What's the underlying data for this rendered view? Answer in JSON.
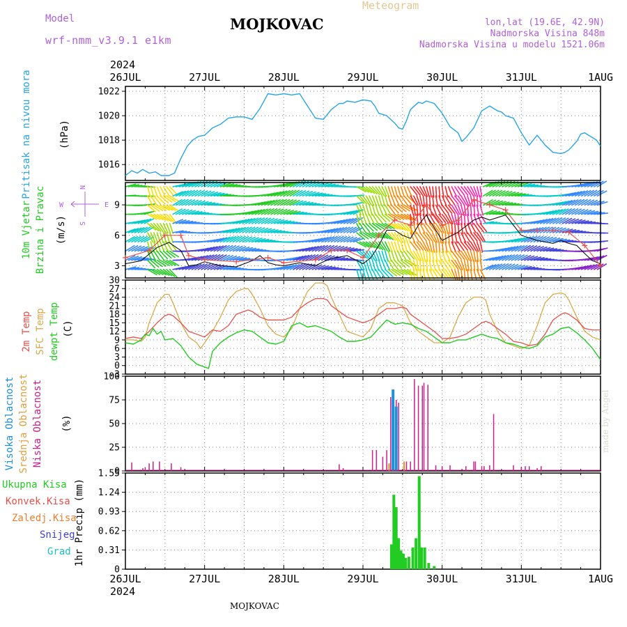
{
  "header": {
    "model_label": "Model",
    "model_name": "wrf-nmm_v3.9.1 e1km",
    "station": "MOJKOVAC",
    "meteogram": "Meteogram",
    "coords": "lon,lat (19.6E, 42.9N)",
    "altitude": "Nadmorska Visina 848m",
    "model_altitude": "Nadmorska Visina u modelu 1521.06m",
    "year": "2024",
    "footer_station": "MOJKOVAC",
    "credit": "made by Angel"
  },
  "colors": {
    "pressure": "#28a5e6",
    "temp2m": "#e8504a",
    "sfc_temp": "#d9a84a",
    "dewpt": "#22cc22",
    "high_cloud": "#1e90d8",
    "mid_cloud": "#e0a040",
    "low_cloud": "#c8208c",
    "total_precip": "#22cc22",
    "conv_precip": "#e8504a",
    "strat_precip": "#f08030",
    "snow": "#4040d0",
    "hail": "#20c0c0",
    "wind_speed": "#000000",
    "gusts": "#e8504a"
  },
  "chart_data": [
    {
      "type": "line",
      "panel": "pressure",
      "ylabel": [
        "Pritisak na nivou mora",
        "(hPa)"
      ],
      "x_ticks": [
        "26JUL",
        "27JUL",
        "28JUL",
        "29JUL",
        "30JUL",
        "31JUL",
        "1AUG"
      ],
      "ylim": [
        1014.7,
        1022.4
      ],
      "yticks": [
        1016,
        1018,
        1020,
        1022
      ],
      "grid": true,
      "series": [
        {
          "name": "Pritisak na nivou mora",
          "x": [
            0,
            0.08,
            0.15,
            0.22,
            0.3,
            0.38,
            0.45,
            0.55,
            0.62,
            0.7,
            0.78,
            0.85,
            0.92,
            1.0,
            1.1,
            1.2,
            1.3,
            1.4,
            1.5,
            1.6,
            1.7,
            1.8,
            1.9,
            2.0,
            2.1,
            2.2,
            2.3,
            2.4,
            2.5,
            2.6,
            2.7,
            2.75,
            2.8,
            2.9,
            3.0,
            3.1,
            3.15,
            3.2,
            3.3,
            3.4,
            3.45,
            3.5,
            3.55,
            3.6,
            3.7,
            3.75,
            3.8,
            3.9,
            4.0,
            4.1,
            4.2,
            4.25,
            4.3,
            4.4,
            4.5,
            4.6,
            4.7,
            4.75,
            4.8,
            4.9,
            5.0,
            5.1,
            5.2,
            5.3,
            5.4,
            5.5,
            5.55,
            5.6,
            5.7,
            5.75,
            5.8,
            5.85,
            5.9,
            5.95,
            6.0
          ],
          "values": [
            1015.1,
            1015.5,
            1015.3,
            1015.6,
            1015.3,
            1015.4,
            1015.1,
            1015.1,
            1015.3,
            1016.5,
            1017.5,
            1018.0,
            1018.3,
            1018.4,
            1019.0,
            1019.3,
            1019.8,
            1019.9,
            1019.9,
            1019.7,
            1020.6,
            1021.8,
            1021.7,
            1021.8,
            1021.7,
            1021.8,
            1020.8,
            1019.8,
            1019.7,
            1020.5,
            1021.0,
            1021.0,
            1021.2,
            1021.1,
            1021.3,
            1021.2,
            1020.8,
            1020.2,
            1020.0,
            1019.4,
            1019.0,
            1018.9,
            1019.6,
            1020.5,
            1021.1,
            1021.0,
            1021.2,
            1021.0,
            1020.2,
            1019.1,
            1018.6,
            1017.9,
            1018.2,
            1019.0,
            1020.4,
            1020.8,
            1020.4,
            1020.3,
            1020.0,
            1019.8,
            1018.6,
            1017.6,
            1018.4,
            1017.6,
            1017.0,
            1016.9,
            1017.0,
            1017.2,
            1017.9,
            1018.5,
            1018.6,
            1018.4,
            1018.2,
            1018.0,
            1017.5
          ]
        }
      ]
    },
    {
      "type": "line",
      "panel": "wind",
      "ylabel": [
        "10m Vjetar",
        "Brzina i Pravac",
        "(m/s)"
      ],
      "compass": {
        "north": "N",
        "south": "S",
        "east": "E",
        "west": "W"
      },
      "ylim": [
        1.8,
        11.2
      ],
      "yticks": [
        3,
        6,
        9
      ],
      "grid": true,
      "series": [
        {
          "name": "Brzina",
          "x": [
            0,
            0.2,
            0.4,
            0.55,
            0.7,
            0.8,
            0.9,
            1.0,
            1.2,
            1.4,
            1.5,
            1.6,
            1.7,
            1.8,
            1.9,
            2.0,
            2.2,
            2.4,
            2.5,
            2.6,
            2.8,
            3.0,
            3.1,
            3.2,
            3.3,
            3.4,
            3.5,
            3.6,
            3.7,
            3.8,
            4.0,
            4.2,
            4.4,
            4.5,
            4.6,
            4.8,
            5.0,
            5.2,
            5.4,
            5.5,
            5.6,
            5.7,
            5.8,
            5.9,
            6.0
          ],
          "values": [
            3.2,
            3.5,
            4.8,
            5.3,
            4.5,
            3.0,
            3.1,
            3.4,
            3.0,
            2.9,
            3.2,
            3.5,
            4.0,
            3.3,
            3.1,
            3.0,
            3.3,
            3.0,
            3.4,
            3.7,
            4.0,
            3.2,
            3.8,
            5.0,
            6.5,
            6.5,
            6.0,
            5.7,
            7.0,
            8.0,
            5.5,
            6.3,
            7.5,
            7.8,
            7.5,
            8.0,
            6.0,
            5.5,
            5.2,
            5.5,
            5.2,
            5.0,
            4.2,
            3.5,
            3.2
          ]
        },
        {
          "name": "Udari",
          "x": [
            0,
            0.3,
            0.5,
            0.7,
            0.8,
            1.0,
            1.4,
            1.8,
            2.0,
            2.4,
            2.6,
            2.8,
            3.0,
            3.2,
            3.4,
            3.6,
            3.8,
            4.0,
            4.2,
            4.4,
            4.6,
            4.8,
            5.0,
            5.2,
            5.4,
            5.6,
            5.8,
            6.0
          ],
          "values": [
            3.8,
            4.5,
            6.0,
            6.0,
            4.0,
            3.6,
            3.4,
            3.8,
            3.3,
            3.6,
            4.5,
            4.5,
            3.8,
            6.0,
            7.5,
            7.0,
            9.0,
            7.0,
            7.5,
            9.5,
            9.0,
            8.5,
            6.5,
            6.5,
            6.5,
            6.3,
            5.0,
            3.0
          ]
        }
      ]
    },
    {
      "type": "line",
      "panel": "temperature",
      "ylabel": [
        "2m Temp",
        "SFC Temp",
        "dewpt Temp",
        "(C)"
      ],
      "ylim": [
        -3,
        30
      ],
      "yticks": [
        -3,
        0,
        3,
        6,
        9,
        12,
        15,
        18,
        21,
        24,
        27,
        30
      ],
      "grid": true,
      "series": [
        {
          "name": "2m Temp",
          "x": [
            0,
            0.1,
            0.2,
            0.3,
            0.4,
            0.5,
            0.55,
            0.6,
            0.7,
            0.8,
            0.9,
            1.0,
            1.1,
            1.2,
            1.3,
            1.4,
            1.5,
            1.55,
            1.6,
            1.7,
            1.8,
            1.9,
            2.0,
            2.1,
            2.2,
            2.3,
            2.4,
            2.5,
            2.55,
            2.6,
            2.7,
            2.8,
            2.9,
            3.0,
            3.1,
            3.2,
            3.3,
            3.4,
            3.5,
            3.55,
            3.6,
            3.7,
            3.8,
            3.9,
            4.0,
            4.1,
            4.2,
            4.3,
            4.4,
            4.5,
            4.55,
            4.6,
            4.7,
            4.8,
            4.9,
            5.0,
            5.1,
            5.2,
            5.3,
            5.4,
            5.5,
            5.55,
            5.6,
            5.7,
            5.8,
            5.9,
            6.0
          ],
          "values": [
            9.5,
            10,
            9.5,
            12,
            15,
            17.5,
            18,
            17.5,
            15,
            12,
            11,
            10,
            12.5,
            12,
            14,
            18,
            19,
            19.5,
            19,
            17,
            16,
            16,
            16,
            17,
            20,
            22,
            23.5,
            23.5,
            23,
            21,
            19,
            17,
            16,
            15,
            16,
            18,
            20,
            20,
            20.5,
            20,
            18,
            16,
            14,
            12,
            9.5,
            9.5,
            10,
            11,
            13,
            15,
            15.5,
            15,
            13,
            11,
            8.5,
            8,
            7,
            7.5,
            11,
            16,
            18,
            18.5,
            18,
            16,
            13,
            12.5,
            12.5
          ]
        },
        {
          "name": "SFC Temp",
          "x": [
            0,
            0.1,
            0.2,
            0.25,
            0.3,
            0.4,
            0.5,
            0.55,
            0.6,
            0.7,
            0.8,
            0.9,
            0.95,
            1.0,
            1.1,
            1.2,
            1.3,
            1.4,
            1.5,
            1.55,
            1.6,
            1.7,
            1.8,
            1.9,
            2.0,
            2.1,
            2.2,
            2.3,
            2.4,
            2.5,
            2.55,
            2.6,
            2.7,
            2.8,
            2.9,
            3.0,
            3.1,
            3.2,
            3.3,
            3.4,
            3.5,
            3.55,
            3.6,
            3.7,
            3.8,
            3.9,
            4.0,
            4.1,
            4.2,
            4.3,
            4.4,
            4.5,
            4.55,
            4.6,
            4.7,
            4.8,
            4.9,
            5.0,
            5.1,
            5.2,
            5.3,
            5.4,
            5.5,
            5.55,
            5.6,
            5.7,
            5.8,
            5.9,
            6.0
          ],
          "values": [
            9,
            9,
            8.5,
            10,
            15,
            22,
            25,
            25,
            22,
            15,
            10,
            8,
            6,
            8,
            12,
            17,
            23,
            26,
            27,
            27,
            25,
            20,
            14,
            11,
            10,
            13,
            20,
            26,
            29,
            29,
            28,
            24,
            18,
            12,
            11,
            10,
            13,
            20,
            22,
            22,
            21,
            18,
            15,
            12,
            10,
            8,
            8,
            10,
            17,
            22,
            24,
            24,
            23,
            18,
            12,
            8,
            7,
            6,
            7,
            14,
            22,
            25,
            25.5,
            25,
            23,
            17,
            12,
            10,
            9
          ]
        },
        {
          "name": "dewpt Temp",
          "x": [
            0,
            0.1,
            0.2,
            0.25,
            0.3,
            0.35,
            0.4,
            0.45,
            0.5,
            0.6,
            0.7,
            0.8,
            0.9,
            1.0,
            1.05,
            1.1,
            1.2,
            1.3,
            1.4,
            1.5,
            1.6,
            1.7,
            1.8,
            1.9,
            2.0,
            2.1,
            2.2,
            2.3,
            2.4,
            2.5,
            2.6,
            2.7,
            2.8,
            2.9,
            3.0,
            3.1,
            3.2,
            3.3,
            3.4,
            3.5,
            3.6,
            3.7,
            3.8,
            3.9,
            4.0,
            4.1,
            4.2,
            4.3,
            4.4,
            4.5,
            4.6,
            4.7,
            4.8,
            4.9,
            5.0,
            5.1,
            5.2,
            5.3,
            5.4,
            5.5,
            5.6,
            5.7,
            5.8,
            5.9,
            6.0
          ],
          "values": [
            8,
            7.5,
            9,
            11,
            10.5,
            13,
            11,
            12,
            9,
            9.5,
            7,
            3,
            0.5,
            -0.5,
            -1,
            5,
            8,
            10,
            11.5,
            12.5,
            12,
            10,
            8,
            7.5,
            8.5,
            14,
            15,
            13.5,
            14,
            13,
            12,
            10,
            8.5,
            8.5,
            9,
            10,
            13,
            16,
            14.5,
            15,
            14.5,
            13,
            12,
            10,
            8,
            8,
            9,
            9,
            10,
            11,
            10,
            9.5,
            8,
            7.5,
            6.5,
            6,
            7,
            10,
            11,
            13,
            13.5,
            11.5,
            9,
            6,
            2
          ]
        }
      ]
    },
    {
      "type": "bar",
      "panel": "clouds",
      "ylabel": [
        "Visoka Oblacnost",
        "Srednja Oblacnost",
        "Niska Oblacnost",
        "(%)"
      ],
      "ylim": [
        0,
        100
      ],
      "yticks": [
        0,
        25,
        50,
        75,
        100
      ],
      "grid": true,
      "series": [
        {
          "name": "Niska Oblacnost",
          "x": [
            0.08,
            0.22,
            0.25,
            0.3,
            0.35,
            0.43,
            0.58,
            0.7,
            2.7,
            2.75,
            3.12,
            3.17,
            3.25,
            3.3,
            3.35,
            3.42,
            3.45,
            3.55,
            3.6,
            3.65,
            3.7,
            3.75,
            3.77,
            3.82,
            3.92,
            4.0,
            4.1,
            4.3,
            4.4,
            4.42,
            4.5,
            4.53,
            4.6,
            4.65,
            4.9,
            5.0,
            5.05,
            5.1,
            5.2,
            5.25
          ],
          "values": [
            9,
            3,
            4,
            8,
            10,
            10,
            8,
            4,
            7,
            3,
            22,
            22,
            15,
            22,
            78,
            75,
            72,
            10,
            10,
            97,
            90,
            90,
            93,
            91,
            6,
            5,
            6,
            5,
            10,
            10,
            5,
            5,
            6,
            60,
            6,
            4,
            5,
            5,
            3,
            5
          ]
        },
        {
          "name": "Srednja Oblacnost",
          "x": [
            3.33,
            3.38,
            3.52
          ],
          "values": [
            8,
            28,
            10
          ]
        },
        {
          "name": "Visoka Oblacnost",
          "x": [
            3.38,
            3.42
          ],
          "values": [
            86,
            68
          ]
        }
      ]
    },
    {
      "type": "bar",
      "panel": "precip",
      "ylabel": [
        "1hr Precip (mm)"
      ],
      "legend": [
        "Ukupna Kisa",
        "Konvek.Kisa",
        "Zaledj.Kisa",
        "Snijeg",
        "Grad"
      ],
      "x_ticks": [
        "26JUL",
        "27JUL",
        "28JUL",
        "29JUL",
        "30JUL",
        "31JUL",
        "1AUG"
      ],
      "ylim": [
        0,
        1.55
      ],
      "yticks": [
        0,
        0.31,
        0.62,
        0.93,
        1.24,
        1.55
      ],
      "grid": true,
      "series": [
        {
          "name": "Ukupna Kisa",
          "x": [
            3.36,
            3.39,
            3.42,
            3.45,
            3.48,
            3.51,
            3.54,
            3.58,
            3.63,
            3.67,
            3.71,
            3.74,
            3.78,
            3.83,
            3.9
          ],
          "values": [
            0.4,
            1.2,
            1.0,
            0.5,
            0.3,
            0.25,
            0.18,
            0.2,
            0.35,
            0.5,
            1.5,
            0.35,
            0.35,
            0.1,
            0.05
          ]
        }
      ]
    }
  ]
}
